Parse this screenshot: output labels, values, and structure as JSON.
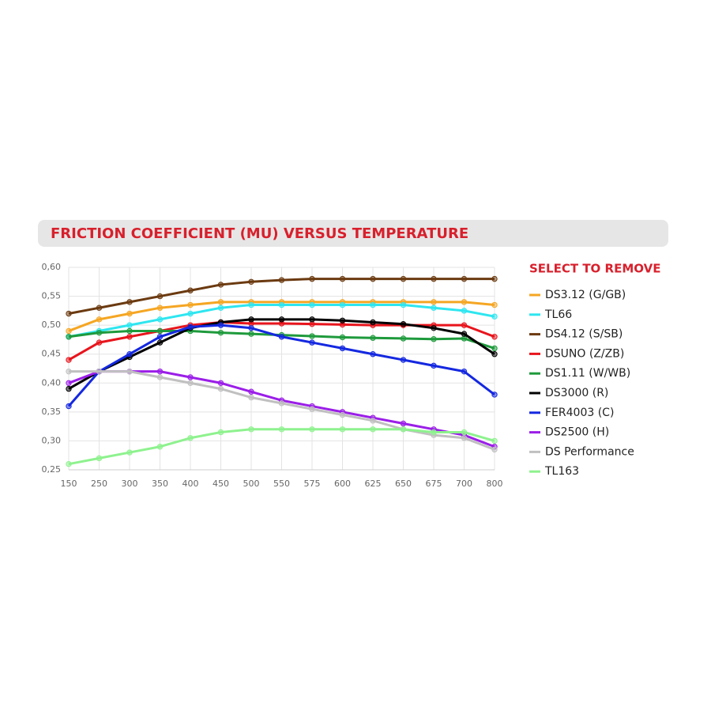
{
  "chart_data": {
    "type": "line",
    "title": "FRICTION COEFFICIENT (MU) VERSUS TEMPERATURE",
    "legend_title": "SELECT TO REMOVE",
    "legend_position": "right",
    "grid": true,
    "categories": [
      "150",
      "250",
      "300",
      "350",
      "400",
      "450",
      "500",
      "550",
      "575",
      "600",
      "625",
      "650",
      "675",
      "700",
      "800"
    ],
    "ylim": [
      0.25,
      0.6
    ],
    "yticks": [
      {
        "value": 0.25,
        "label": "0,25"
      },
      {
        "value": 0.3,
        "label": "0,30"
      },
      {
        "value": 0.35,
        "label": "0,35"
      },
      {
        "value": 0.4,
        "label": "0,40"
      },
      {
        "value": 0.45,
        "label": "0,45"
      },
      {
        "value": 0.5,
        "label": "0,50"
      },
      {
        "value": 0.55,
        "label": "0,55"
      },
      {
        "value": 0.6,
        "label": "0,60"
      }
    ],
    "series": [
      {
        "name": "DS3.12 (G/GB)",
        "color": "#f5a623",
        "values": [
          0.49,
          0.51,
          0.52,
          0.53,
          0.535,
          0.54,
          0.54,
          0.54,
          0.54,
          0.54,
          0.54,
          0.54,
          0.54,
          0.54,
          0.535
        ]
      },
      {
        "name": "TL66",
        "color": "#2ee6f0",
        "values": [
          0.48,
          0.49,
          0.5,
          0.51,
          0.52,
          0.53,
          0.535,
          0.535,
          0.535,
          0.535,
          0.535,
          0.535,
          0.53,
          0.525,
          0.515
        ]
      },
      {
        "name": "DS4.12 (S/SB)",
        "color": "#6b3a10",
        "values": [
          0.52,
          0.53,
          0.54,
          0.55,
          0.56,
          0.57,
          0.575,
          0.578,
          0.58,
          0.58,
          0.58,
          0.58,
          0.58,
          0.58,
          0.58
        ]
      },
      {
        "name": "DSUNO (Z/ZB)",
        "color": "#e8141c",
        "values": [
          0.44,
          0.47,
          0.48,
          0.49,
          0.5,
          0.505,
          0.503,
          0.503,
          0.502,
          0.501,
          0.5,
          0.5,
          0.5,
          0.5,
          0.48
        ]
      },
      {
        "name": "DS1.11 (W/WB)",
        "color": "#1e9a3c",
        "values": [
          0.48,
          0.487,
          0.49,
          0.49,
          0.49,
          0.487,
          0.485,
          0.483,
          0.481,
          0.479,
          0.478,
          0.477,
          0.476,
          0.477,
          0.46
        ]
      },
      {
        "name": "DS3000 (R)",
        "color": "#000000",
        "values": [
          0.39,
          0.42,
          0.445,
          0.47,
          0.495,
          0.505,
          0.51,
          0.51,
          0.51,
          0.508,
          0.505,
          0.502,
          0.495,
          0.485,
          0.45
        ]
      },
      {
        "name": "FER4003 (C)",
        "color": "#1428e0",
        "values": [
          0.36,
          0.42,
          0.45,
          0.48,
          0.497,
          0.5,
          0.495,
          0.48,
          0.47,
          0.46,
          0.45,
          0.44,
          0.43,
          0.42,
          0.38
        ]
      },
      {
        "name": "DS2500 (H)",
        "color": "#9b1ee8",
        "values": [
          0.4,
          0.42,
          0.42,
          0.42,
          0.41,
          0.4,
          0.385,
          0.37,
          0.36,
          0.35,
          0.34,
          0.33,
          0.32,
          0.31,
          0.29
        ]
      },
      {
        "name": "DS Performance",
        "color": "#c0c0c0",
        "values": [
          0.42,
          0.42,
          0.42,
          0.41,
          0.4,
          0.39,
          0.375,
          0.365,
          0.355,
          0.345,
          0.335,
          0.32,
          0.31,
          0.305,
          0.285
        ]
      },
      {
        "name": "TL163",
        "color": "#8ef28e",
        "values": [
          0.26,
          0.27,
          0.28,
          0.29,
          0.305,
          0.315,
          0.32,
          0.32,
          0.32,
          0.32,
          0.32,
          0.32,
          0.315,
          0.315,
          0.3
        ]
      }
    ]
  }
}
